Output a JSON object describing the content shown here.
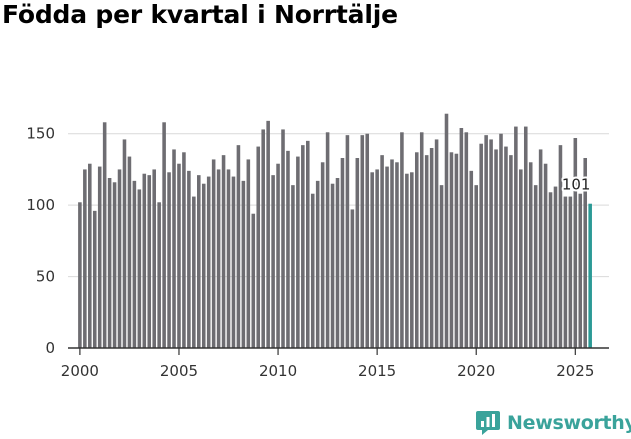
{
  "colors": {
    "bar": "#6e6d72",
    "highlight": "#2b9a96",
    "grid": "#d9d9d9",
    "axis": "#333333",
    "brand": "#3aa39b"
  },
  "brand": {
    "name": "Newsworthy",
    "icon": "chart-speech-bubble-icon"
  },
  "chart_data": {
    "type": "bar",
    "title": "Födda per kvartal i Norrtälje",
    "xlabel": "",
    "ylabel": "",
    "ylim": [
      0,
      175
    ],
    "yticks": [
      0,
      50,
      100,
      150
    ],
    "xticks": [
      2000,
      2005,
      2010,
      2015,
      2020,
      2025
    ],
    "xlim": [
      1999.4,
      2026.7
    ],
    "grid": true,
    "highlight_label": "101",
    "series": [
      {
        "name": "Födda",
        "x": [
          2000.0,
          2000.25,
          2000.5,
          2000.75,
          2001.0,
          2001.25,
          2001.5,
          2001.75,
          2002.0,
          2002.25,
          2002.5,
          2002.75,
          2003.0,
          2003.25,
          2003.5,
          2003.75,
          2004.0,
          2004.25,
          2004.5,
          2004.75,
          2005.0,
          2005.25,
          2005.5,
          2005.75,
          2006.0,
          2006.25,
          2006.5,
          2006.75,
          2007.0,
          2007.25,
          2007.5,
          2007.75,
          2008.0,
          2008.25,
          2008.5,
          2008.75,
          2009.0,
          2009.25,
          2009.5,
          2009.75,
          2010.0,
          2010.25,
          2010.5,
          2010.75,
          2011.0,
          2011.25,
          2011.5,
          2011.75,
          2012.0,
          2012.25,
          2012.5,
          2012.75,
          2013.0,
          2013.25,
          2013.5,
          2013.75,
          2014.0,
          2014.25,
          2014.5,
          2014.75,
          2015.0,
          2015.25,
          2015.5,
          2015.75,
          2016.0,
          2016.25,
          2016.5,
          2016.75,
          2017.0,
          2017.25,
          2017.5,
          2017.75,
          2018.0,
          2018.25,
          2018.5,
          2018.75,
          2019.0,
          2019.25,
          2019.5,
          2019.75,
          2020.0,
          2020.25,
          2020.5,
          2020.75,
          2021.0,
          2021.25,
          2021.5,
          2021.75,
          2022.0,
          2022.25,
          2022.5,
          2022.75,
          2023.0,
          2023.25,
          2023.5,
          2023.75,
          2024.0,
          2024.25,
          2024.5,
          2024.75,
          2025.0,
          2025.25,
          2025.5,
          2025.75
        ],
        "values": [
          102,
          125,
          129,
          96,
          127,
          158,
          119,
          116,
          125,
          146,
          134,
          117,
          111,
          122,
          121,
          125,
          102,
          158,
          123,
          139,
          129,
          137,
          124,
          106,
          121,
          115,
          120,
          132,
          125,
          135,
          125,
          120,
          142,
          117,
          132,
          94,
          141,
          153,
          159,
          121,
          129,
          153,
          138,
          114,
          134,
          142,
          145,
          108,
          117,
          130,
          151,
          115,
          119,
          133,
          149,
          97,
          133,
          149,
          150,
          123,
          125,
          135,
          127,
          132,
          130,
          151,
          122,
          123,
          137,
          151,
          135,
          140,
          146,
          114,
          164,
          137,
          136,
          154,
          151,
          124,
          114,
          143,
          149,
          146,
          139,
          150,
          141,
          135,
          155,
          125,
          155,
          130,
          114,
          139,
          129,
          109,
          113,
          142,
          106,
          106,
          147,
          108,
          133,
          101
        ]
      }
    ]
  }
}
